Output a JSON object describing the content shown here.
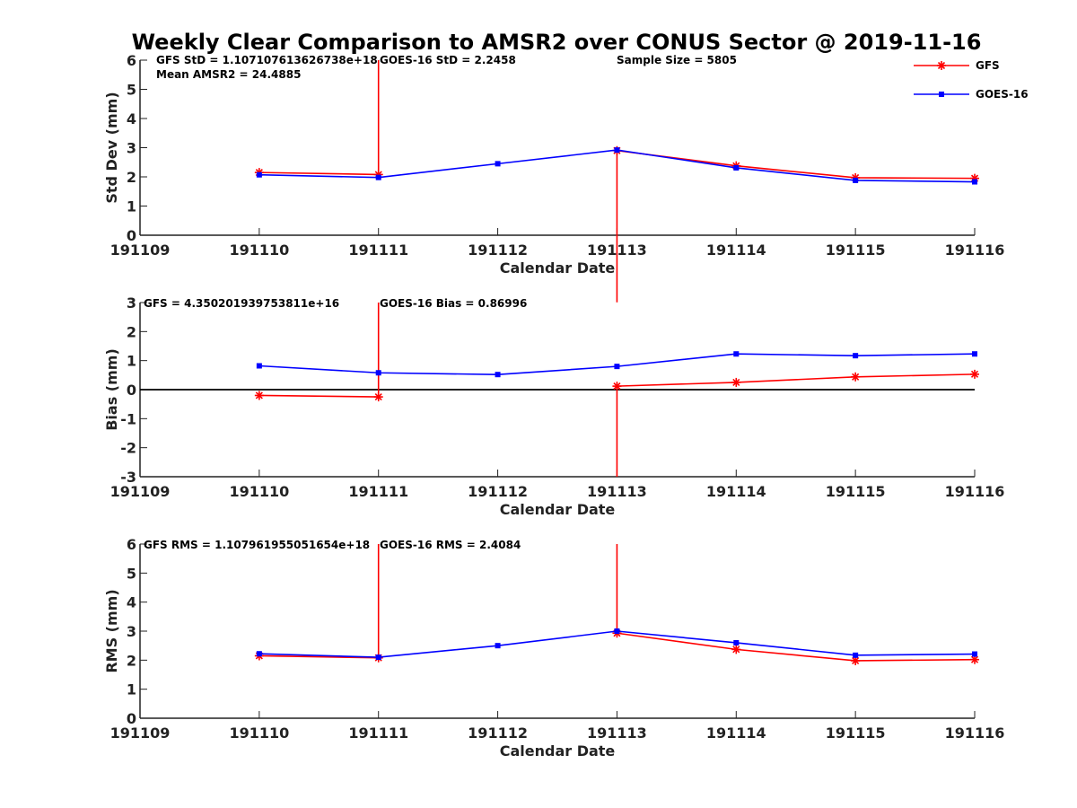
{
  "figure": {
    "title": "Weekly Clear Comparison to AMSR2 over CONUS Sector @ 2019-11-16"
  },
  "legend": {
    "placement": "top-right",
    "entries": [
      {
        "name": "GFS",
        "color": "#ff0000",
        "marker": "asterisk"
      },
      {
        "name": "GOES-16",
        "color": "#0000ff",
        "marker": "square"
      }
    ]
  },
  "chart_data": [
    {
      "type": "line",
      "panel": "std",
      "xlabel": "Calendar Date",
      "ylabel": "Std Dev (mm)",
      "categories": [
        "191109",
        "191110",
        "191111",
        "191112",
        "191113",
        "191114",
        "191115",
        "191116"
      ],
      "ylim": [
        0,
        6
      ],
      "yticks": [
        "0",
        "1",
        "2",
        "3",
        "4",
        "5",
        "6"
      ],
      "grid": false,
      "annotations": [
        "GFS StD = 1.107107613626738e+18",
        "GOES-16 StD = 2.2458",
        "Sample Size = 5805",
        "Mean AMSR2 = 24.4885"
      ],
      "series": [
        {
          "name": "GFS",
          "color": "#ff0000",
          "values": [
            null,
            2.15,
            2.08,
            null,
            2.9,
            2.38,
            1.97,
            1.95
          ],
          "spikes": [
            {
              "x": 2,
              "from": 2.08,
              "to": 6
            },
            {
              "x": 4,
              "from": 2.9,
              "to": -2.3
            }
          ]
        },
        {
          "name": "GOES-16",
          "color": "#0000ff",
          "values": [
            null,
            2.07,
            1.98,
            2.45,
            2.92,
            2.31,
            1.88,
            1.83
          ]
        }
      ]
    },
    {
      "type": "line",
      "panel": "bias",
      "xlabel": "Calendar Date",
      "ylabel": "Bias (mm)",
      "categories": [
        "191109",
        "191110",
        "191111",
        "191112",
        "191113",
        "191114",
        "191115",
        "191116"
      ],
      "ylim": [
        -3,
        3
      ],
      "yticks": [
        "-3",
        "-2",
        "-1",
        "0",
        "1",
        "2",
        "3"
      ],
      "grid": false,
      "reference_line": 0,
      "annotations": [
        "GFS = 4.350201939753811e+16",
        "GOES-16 Bias  = 0.86996"
      ],
      "series": [
        {
          "name": "GFS",
          "color": "#ff0000",
          "values": [
            null,
            -0.2,
            -0.25,
            null,
            0.12,
            0.25,
            0.44,
            0.53
          ],
          "spikes": [
            {
              "x": 2,
              "from": -0.25,
              "to": 3
            },
            {
              "x": 4,
              "from": 0.12,
              "to": -3
            }
          ]
        },
        {
          "name": "GOES-16",
          "color": "#0000ff",
          "values": [
            null,
            0.82,
            0.58,
            0.52,
            0.8,
            1.23,
            1.17,
            1.23
          ]
        }
      ]
    },
    {
      "type": "line",
      "panel": "rms",
      "xlabel": "Calendar Date",
      "ylabel": "RMS (mm)",
      "categories": [
        "191109",
        "191110",
        "191111",
        "191112",
        "191113",
        "191114",
        "191115",
        "191116"
      ],
      "ylim": [
        0,
        6
      ],
      "yticks": [
        "0",
        "1",
        "2",
        "3",
        "4",
        "5",
        "6"
      ],
      "grid": false,
      "annotations": [
        "GFS RMS = 1.107961955051654e+18",
        "GOES-16 RMS = 2.4084"
      ],
      "series": [
        {
          "name": "GFS",
          "color": "#ff0000",
          "values": [
            null,
            2.15,
            2.08,
            null,
            2.93,
            2.37,
            1.98,
            2.02
          ],
          "spikes": [
            {
              "x": 2,
              "from": 2.08,
              "to": 6
            },
            {
              "x": 4,
              "from": 2.93,
              "to": 6
            }
          ]
        },
        {
          "name": "GOES-16",
          "color": "#0000ff",
          "values": [
            null,
            2.22,
            2.1,
            2.5,
            3.0,
            2.6,
            2.17,
            2.21
          ]
        }
      ]
    }
  ]
}
